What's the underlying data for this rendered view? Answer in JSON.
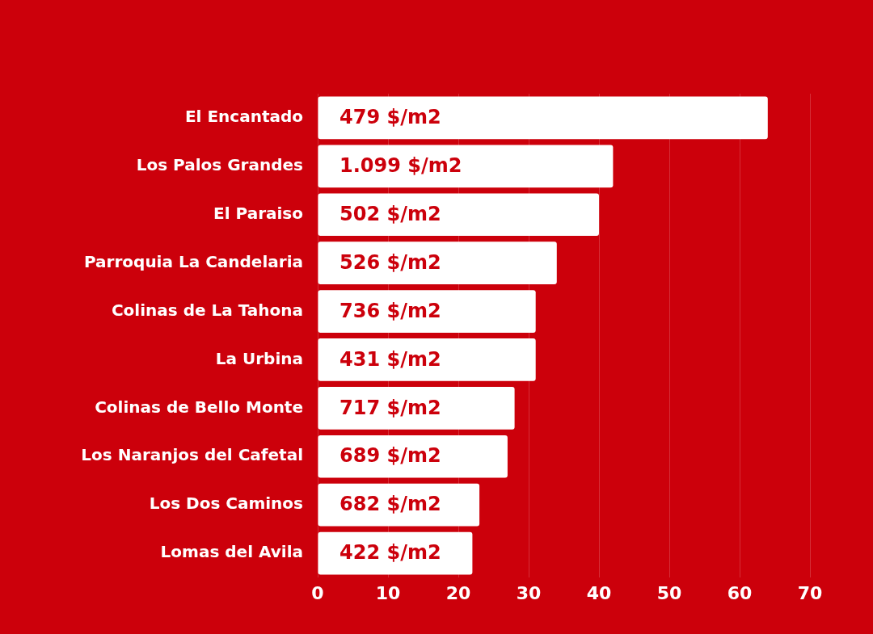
{
  "chart_data": {
    "type": "bar",
    "orientation": "horizontal",
    "categories": [
      "El Encantado",
      "Los Palos Grandes",
      "El Paraiso",
      "Parroquia La Candelaria",
      "Colinas de La Tahona",
      "La Urbina",
      "Colinas de Bello Monte",
      "Los Naranjos del Cafetal",
      "Los Dos Caminos",
      "Lomas del Avila"
    ],
    "values": [
      64,
      42,
      40,
      34,
      31,
      31,
      28,
      27,
      23,
      22
    ],
    "annotations": [
      {
        "text": "479 $/m2",
        "y": "El Encantado"
      },
      {
        "text": "1.099 $/m2",
        "y": "Los Palos Grandes"
      },
      {
        "text": "502 $/m2",
        "y": "El Paraiso"
      },
      {
        "text": "526 $/m2",
        "y": "Parroquia La Candelaria"
      },
      {
        "text": "736 $/m2",
        "y": "Colinas de La Tahona"
      },
      {
        "text": "431 $/m2",
        "y": "La Urbina"
      },
      {
        "text": "717 $/m2",
        "y": "Colinas de Bello Monte"
      },
      {
        "text": "689 $/m2",
        "y": "Los Naranjos del Cafetal"
      },
      {
        "text": "682 $/m2",
        "y": "Los Dos Caminos"
      },
      {
        "text": "422 $/m2",
        "y": "Lomas del Avila"
      }
    ],
    "color": "#ffffff",
    "xlim": [
      0,
      70
    ],
    "xticks": [
      0,
      10,
      20,
      30,
      40,
      50,
      60,
      70
    ],
    "grid": "x"
  }
}
